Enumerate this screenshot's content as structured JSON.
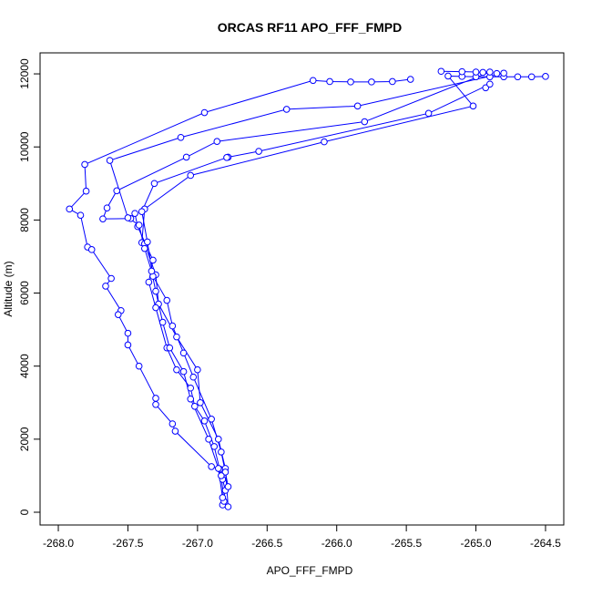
{
  "chart_data": {
    "type": "line",
    "markers": true,
    "title": "ORCAS RF11 APO_FFF_FMPD",
    "x_label": "APO_FFF_FMPD",
    "y_label": "Altitude (m)",
    "xlim": [
      -268.131,
      -264.369
    ],
    "ylim": [
      -349,
      12575
    ],
    "xticks": [
      {
        "value": -268,
        "label": "-268.0"
      },
      -267.5,
      {
        "value": -267,
        "label": "-267.0"
      },
      -266.5,
      {
        "value": -266,
        "label": "-266.0"
      },
      -265.5,
      {
        "value": -265,
        "label": "-265.0"
      },
      -264.5
    ],
    "yticks": [
      0,
      2000,
      4000,
      6000,
      8000,
      10000,
      12000
    ],
    "series": [
      {
        "color": "#0000ff",
        "x": [
          -265.47,
          -265.6,
          -265.75,
          -265.9,
          -266.05,
          -266.17,
          -266.95,
          -267.81,
          -267.8,
          -267.92,
          -267.84,
          -267.79,
          -267.76,
          -267.62,
          -267.66,
          -267.55,
          -267.57,
          -267.5,
          -267.5,
          -267.42,
          -267.3,
          -267.3,
          -267.18,
          -267.16,
          -266.9,
          -266.84,
          -266.82,
          -266.8,
          -266.82,
          null,
          -264.5,
          -264.6,
          -264.7,
          -264.8,
          -264.9,
          -265.0,
          -265.1,
          -265.2,
          -265.02,
          -266.09,
          -267.05,
          -267.38,
          -267.4,
          -267.38,
          -267.3,
          -267.28,
          -267.15,
          -267.0,
          -266.98,
          -266.85,
          -266.8,
          -266.78,
          null,
          -264.93,
          -264.9,
          -265.34,
          -266.56,
          -266.78,
          -266.79,
          -267.31,
          -267.4,
          -267.36,
          -267.32,
          -267.22,
          -267.18,
          -267.1,
          -267.03,
          -266.9,
          -266.83,
          -266.8,
          -266.78,
          null,
          -265.25,
          -265.1,
          -265.0,
          -264.95,
          -264.9,
          -265.8,
          -266.86,
          -267.08,
          -267.58,
          -267.65,
          -267.68,
          -267.48,
          -267.45,
          -267.43,
          -267.32,
          -267.35,
          -267.3,
          -267.22,
          -267.15,
          -267.05,
          -267.02,
          -266.95,
          -266.88,
          -266.83,
          -266.81,
          null,
          -264.85,
          -264.8,
          -265.85,
          -266.36,
          -267.12,
          -267.63,
          -267.5,
          -267.42,
          -267.38,
          -267.33,
          -267.3,
          -267.25,
          -267.2,
          -267.1,
          -267.05,
          -266.92,
          -266.85,
          -266.82
        ],
        "values": [
          11850,
          11790,
          11780,
          11780,
          11790,
          11820,
          10940,
          9520,
          8790,
          8300,
          8130,
          7260,
          7190,
          6400,
          6190,
          5520,
          5410,
          4900,
          4580,
          4000,
          3120,
          2950,
          2420,
          2220,
          1250,
          1180,
          900,
          600,
          200,
          null,
          11930,
          11920,
          11920,
          11920,
          11920,
          11920,
          11930,
          11940,
          11120,
          10140,
          9220,
          8300,
          7380,
          7350,
          6500,
          5700,
          4800,
          3900,
          3000,
          2000,
          1200,
          150,
          null,
          11620,
          11720,
          10920,
          9880,
          9720,
          9710,
          9000,
          8230,
          7400,
          6460,
          5800,
          5100,
          4360,
          3700,
          2550,
          1650,
          1100,
          700,
          null,
          12070,
          12060,
          12050,
          12040,
          12050,
          10690,
          10150,
          9720,
          8800,
          8330,
          8030,
          8040,
          8180,
          7820,
          6900,
          6300,
          5600,
          4500,
          3900,
          3400,
          2900,
          2500,
          1800,
          1000,
          300,
          null,
          12010,
          12020,
          11120,
          11030,
          10260,
          9630,
          8060,
          7860,
          7220,
          6600,
          6050,
          5200,
          4500,
          3850,
          3100,
          2000,
          1200,
          400
        ]
      }
    ]
  }
}
